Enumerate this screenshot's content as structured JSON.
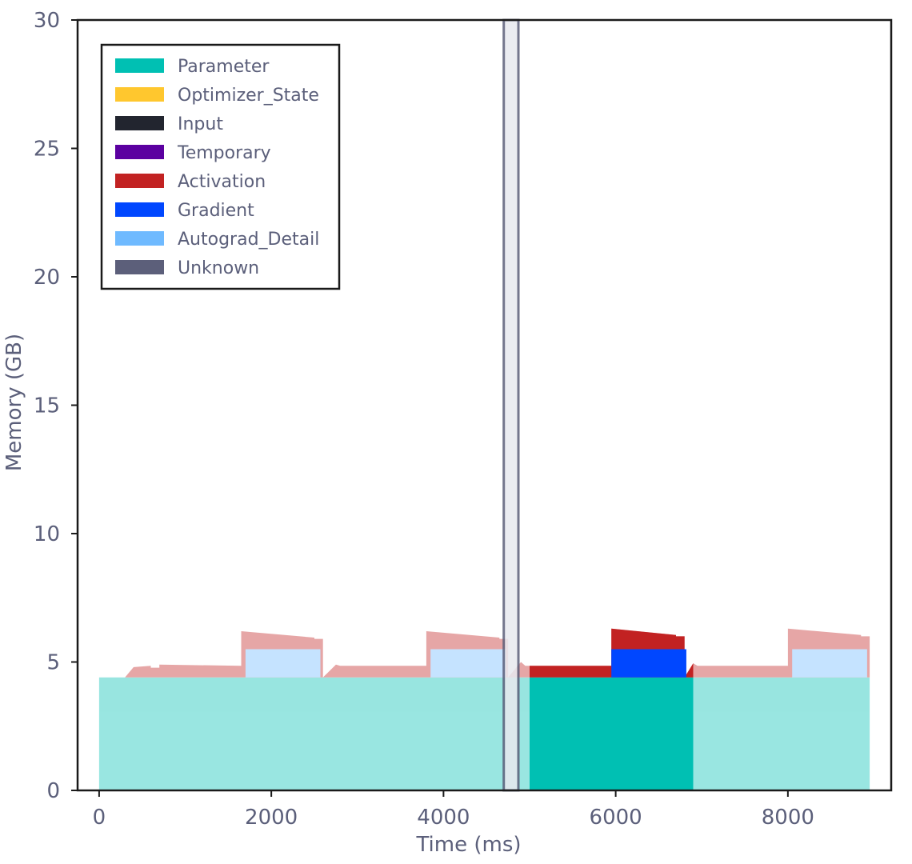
{
  "chart_data": {
    "type": "area",
    "title": "",
    "xlabel": "Time (ms)",
    "ylabel": "Memory (GB)",
    "xlim": [
      -250,
      9200
    ],
    "ylim": [
      0,
      30
    ],
    "xticks": [
      0,
      2000,
      4000,
      6000,
      8000
    ],
    "xtick_labels": [
      "0",
      "2000",
      "4000",
      "6000",
      "8000"
    ],
    "yticks": [
      0,
      5,
      10,
      15,
      20,
      25,
      30
    ],
    "ytick_labels": [
      "0",
      "5",
      "10",
      "15",
      "20",
      "25",
      "30"
    ],
    "legend_placement": "top-left",
    "legend": [
      {
        "name": "Parameter",
        "color": "#00c0b3"
      },
      {
        "name": "Optimizer_State",
        "color": "#ffc72e"
      },
      {
        "name": "Input",
        "color": "#22252f"
      },
      {
        "name": "Temporary",
        "color": "#5b00a0"
      },
      {
        "name": "Activation",
        "color": "#c22222"
      },
      {
        "name": "Gradient",
        "color": "#0047ff"
      },
      {
        "name": "Autograd_Detail",
        "color": "#6fbaff"
      },
      {
        "name": "Unknown",
        "color": "#5c5f7a"
      }
    ],
    "highlight_window": {
      "start_ms": 5000,
      "end_ms": 6900
    },
    "selection_band": {
      "start_ms": 4700,
      "end_ms": 4870,
      "color": "#e8e9ef"
    },
    "series": [
      {
        "name": "Parameter",
        "color": "#00c0b3",
        "points": [
          [
            0,
            0
          ],
          [
            0,
            4.4
          ],
          [
            8950,
            4.4
          ],
          [
            8950,
            0
          ]
        ]
      },
      {
        "name": "Activation",
        "color": "#c22222",
        "points": [
          [
            0,
            4.4
          ],
          [
            300,
            4.4
          ],
          [
            400,
            4.8
          ],
          [
            600,
            4.85
          ],
          [
            600,
            4.78
          ],
          [
            700,
            4.78
          ],
          [
            700,
            4.9
          ],
          [
            1650,
            4.85
          ],
          [
            1650,
            6.2
          ],
          [
            2500,
            5.95
          ],
          [
            2500,
            5.9
          ],
          [
            2600,
            5.9
          ],
          [
            2600,
            4.4
          ],
          [
            2750,
            4.9
          ],
          [
            2800,
            4.85
          ],
          [
            3800,
            4.85
          ],
          [
            3800,
            6.2
          ],
          [
            4650,
            5.95
          ],
          [
            4650,
            5.9
          ],
          [
            4750,
            5.9
          ],
          [
            4750,
            4.4
          ],
          [
            4900,
            5
          ],
          [
            4950,
            4.85
          ],
          [
            5950,
            4.85
          ],
          [
            5950,
            6.3
          ],
          [
            6700,
            6.05
          ],
          [
            6700,
            6
          ],
          [
            6800,
            6
          ],
          [
            6800,
            4.4
          ],
          [
            6900,
            4.95
          ],
          [
            6950,
            4.85
          ],
          [
            8000,
            4.85
          ],
          [
            8000,
            6.3
          ],
          [
            8850,
            6.05
          ],
          [
            8850,
            6
          ],
          [
            8950,
            6
          ],
          [
            8950,
            4.4
          ]
        ]
      },
      {
        "name": "Autograd_Detail",
        "color": "#6fbaff",
        "points": [
          [
            1700,
            4.4
          ],
          [
            1700,
            5.5
          ],
          [
            2570,
            5.5
          ],
          [
            2570,
            4.4
          ]
        ]
      },
      {
        "name": "Autograd_Detail",
        "color": "#6fbaff",
        "points": [
          [
            3850,
            4.4
          ],
          [
            3850,
            5.5
          ],
          [
            4720,
            5.5
          ],
          [
            4720,
            4.4
          ]
        ]
      },
      {
        "name": "Gradient",
        "color": "#0047ff",
        "points": [
          [
            5950,
            4.4
          ],
          [
            5950,
            5.5
          ],
          [
            6820,
            5.5
          ],
          [
            6820,
            4.4
          ]
        ]
      },
      {
        "name": "Autograd_Detail",
        "color": "#6fbaff",
        "points": [
          [
            8050,
            4.4
          ],
          [
            8050,
            5.5
          ],
          [
            8920,
            5.5
          ],
          [
            8920,
            4.4
          ]
        ]
      }
    ]
  }
}
